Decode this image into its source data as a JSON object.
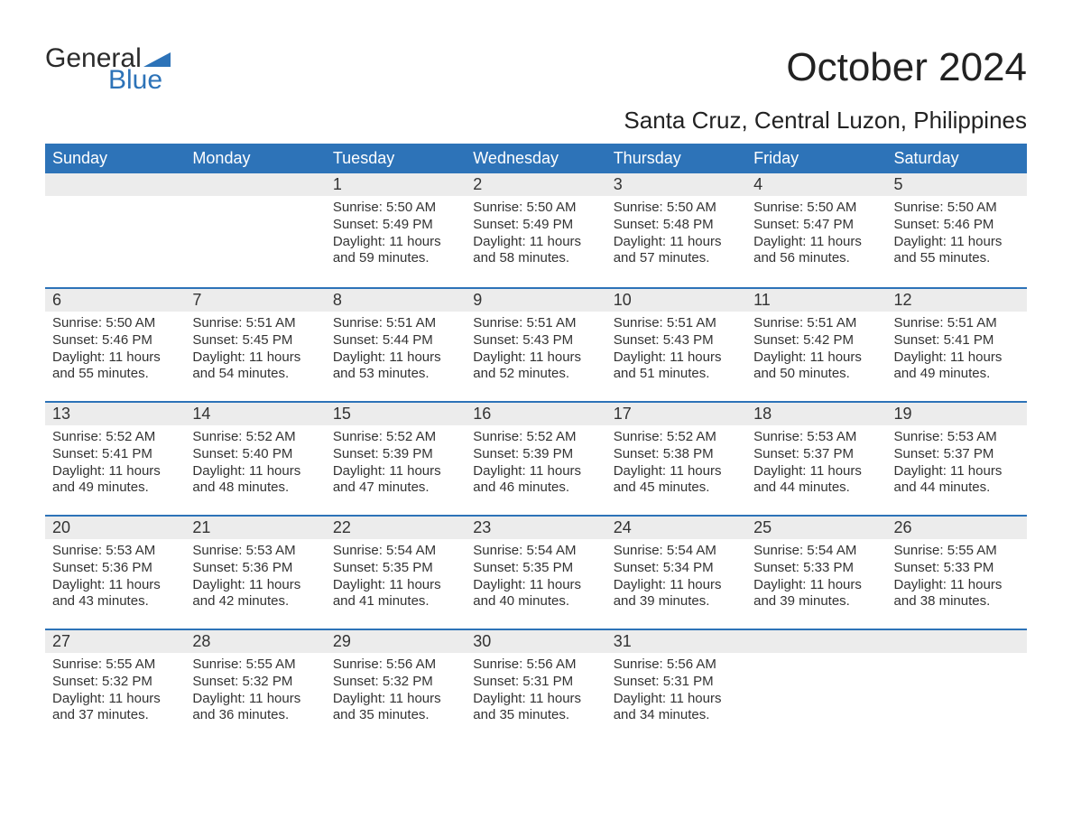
{
  "logo": {
    "text_general": "General",
    "text_blue": "Blue",
    "brand_color": "#2d73b8"
  },
  "header": {
    "month_title": "October 2024",
    "location": "Santa Cruz, Central Luzon, Philippines"
  },
  "styling": {
    "header_bg": "#2d73b8",
    "header_fg": "#ffffff",
    "daynum_bg": "#ececec",
    "row_border_color": "#2d73b8",
    "body_bg": "#ffffff",
    "text_color": "#333333",
    "month_fontsize": 44,
    "location_fontsize": 26,
    "weekday_fontsize": 18,
    "daynum_fontsize": 18,
    "body_fontsize": 15
  },
  "calendar": {
    "weekdays": [
      "Sunday",
      "Monday",
      "Tuesday",
      "Wednesday",
      "Thursday",
      "Friday",
      "Saturday"
    ],
    "weeks": [
      [
        null,
        null,
        {
          "day": "1",
          "sunrise": "Sunrise: 5:50 AM",
          "sunset": "Sunset: 5:49 PM",
          "daylight1": "Daylight: 11 hours",
          "daylight2": "and 59 minutes."
        },
        {
          "day": "2",
          "sunrise": "Sunrise: 5:50 AM",
          "sunset": "Sunset: 5:49 PM",
          "daylight1": "Daylight: 11 hours",
          "daylight2": "and 58 minutes."
        },
        {
          "day": "3",
          "sunrise": "Sunrise: 5:50 AM",
          "sunset": "Sunset: 5:48 PM",
          "daylight1": "Daylight: 11 hours",
          "daylight2": "and 57 minutes."
        },
        {
          "day": "4",
          "sunrise": "Sunrise: 5:50 AM",
          "sunset": "Sunset: 5:47 PM",
          "daylight1": "Daylight: 11 hours",
          "daylight2": "and 56 minutes."
        },
        {
          "day": "5",
          "sunrise": "Sunrise: 5:50 AM",
          "sunset": "Sunset: 5:46 PM",
          "daylight1": "Daylight: 11 hours",
          "daylight2": "and 55 minutes."
        }
      ],
      [
        {
          "day": "6",
          "sunrise": "Sunrise: 5:50 AM",
          "sunset": "Sunset: 5:46 PM",
          "daylight1": "Daylight: 11 hours",
          "daylight2": "and 55 minutes."
        },
        {
          "day": "7",
          "sunrise": "Sunrise: 5:51 AM",
          "sunset": "Sunset: 5:45 PM",
          "daylight1": "Daylight: 11 hours",
          "daylight2": "and 54 minutes."
        },
        {
          "day": "8",
          "sunrise": "Sunrise: 5:51 AM",
          "sunset": "Sunset: 5:44 PM",
          "daylight1": "Daylight: 11 hours",
          "daylight2": "and 53 minutes."
        },
        {
          "day": "9",
          "sunrise": "Sunrise: 5:51 AM",
          "sunset": "Sunset: 5:43 PM",
          "daylight1": "Daylight: 11 hours",
          "daylight2": "and 52 minutes."
        },
        {
          "day": "10",
          "sunrise": "Sunrise: 5:51 AM",
          "sunset": "Sunset: 5:43 PM",
          "daylight1": "Daylight: 11 hours",
          "daylight2": "and 51 minutes."
        },
        {
          "day": "11",
          "sunrise": "Sunrise: 5:51 AM",
          "sunset": "Sunset: 5:42 PM",
          "daylight1": "Daylight: 11 hours",
          "daylight2": "and 50 minutes."
        },
        {
          "day": "12",
          "sunrise": "Sunrise: 5:51 AM",
          "sunset": "Sunset: 5:41 PM",
          "daylight1": "Daylight: 11 hours",
          "daylight2": "and 49 minutes."
        }
      ],
      [
        {
          "day": "13",
          "sunrise": "Sunrise: 5:52 AM",
          "sunset": "Sunset: 5:41 PM",
          "daylight1": "Daylight: 11 hours",
          "daylight2": "and 49 minutes."
        },
        {
          "day": "14",
          "sunrise": "Sunrise: 5:52 AM",
          "sunset": "Sunset: 5:40 PM",
          "daylight1": "Daylight: 11 hours",
          "daylight2": "and 48 minutes."
        },
        {
          "day": "15",
          "sunrise": "Sunrise: 5:52 AM",
          "sunset": "Sunset: 5:39 PM",
          "daylight1": "Daylight: 11 hours",
          "daylight2": "and 47 minutes."
        },
        {
          "day": "16",
          "sunrise": "Sunrise: 5:52 AM",
          "sunset": "Sunset: 5:39 PM",
          "daylight1": "Daylight: 11 hours",
          "daylight2": "and 46 minutes."
        },
        {
          "day": "17",
          "sunrise": "Sunrise: 5:52 AM",
          "sunset": "Sunset: 5:38 PM",
          "daylight1": "Daylight: 11 hours",
          "daylight2": "and 45 minutes."
        },
        {
          "day": "18",
          "sunrise": "Sunrise: 5:53 AM",
          "sunset": "Sunset: 5:37 PM",
          "daylight1": "Daylight: 11 hours",
          "daylight2": "and 44 minutes."
        },
        {
          "day": "19",
          "sunrise": "Sunrise: 5:53 AM",
          "sunset": "Sunset: 5:37 PM",
          "daylight1": "Daylight: 11 hours",
          "daylight2": "and 44 minutes."
        }
      ],
      [
        {
          "day": "20",
          "sunrise": "Sunrise: 5:53 AM",
          "sunset": "Sunset: 5:36 PM",
          "daylight1": "Daylight: 11 hours",
          "daylight2": "and 43 minutes."
        },
        {
          "day": "21",
          "sunrise": "Sunrise: 5:53 AM",
          "sunset": "Sunset: 5:36 PM",
          "daylight1": "Daylight: 11 hours",
          "daylight2": "and 42 minutes."
        },
        {
          "day": "22",
          "sunrise": "Sunrise: 5:54 AM",
          "sunset": "Sunset: 5:35 PM",
          "daylight1": "Daylight: 11 hours",
          "daylight2": "and 41 minutes."
        },
        {
          "day": "23",
          "sunrise": "Sunrise: 5:54 AM",
          "sunset": "Sunset: 5:35 PM",
          "daylight1": "Daylight: 11 hours",
          "daylight2": "and 40 minutes."
        },
        {
          "day": "24",
          "sunrise": "Sunrise: 5:54 AM",
          "sunset": "Sunset: 5:34 PM",
          "daylight1": "Daylight: 11 hours",
          "daylight2": "and 39 minutes."
        },
        {
          "day": "25",
          "sunrise": "Sunrise: 5:54 AM",
          "sunset": "Sunset: 5:33 PM",
          "daylight1": "Daylight: 11 hours",
          "daylight2": "and 39 minutes."
        },
        {
          "day": "26",
          "sunrise": "Sunrise: 5:55 AM",
          "sunset": "Sunset: 5:33 PM",
          "daylight1": "Daylight: 11 hours",
          "daylight2": "and 38 minutes."
        }
      ],
      [
        {
          "day": "27",
          "sunrise": "Sunrise: 5:55 AM",
          "sunset": "Sunset: 5:32 PM",
          "daylight1": "Daylight: 11 hours",
          "daylight2": "and 37 minutes."
        },
        {
          "day": "28",
          "sunrise": "Sunrise: 5:55 AM",
          "sunset": "Sunset: 5:32 PM",
          "daylight1": "Daylight: 11 hours",
          "daylight2": "and 36 minutes."
        },
        {
          "day": "29",
          "sunrise": "Sunrise: 5:56 AM",
          "sunset": "Sunset: 5:32 PM",
          "daylight1": "Daylight: 11 hours",
          "daylight2": "and 35 minutes."
        },
        {
          "day": "30",
          "sunrise": "Sunrise: 5:56 AM",
          "sunset": "Sunset: 5:31 PM",
          "daylight1": "Daylight: 11 hours",
          "daylight2": "and 35 minutes."
        },
        {
          "day": "31",
          "sunrise": "Sunrise: 5:56 AM",
          "sunset": "Sunset: 5:31 PM",
          "daylight1": "Daylight: 11 hours",
          "daylight2": "and 34 minutes."
        },
        null,
        null
      ]
    ]
  }
}
